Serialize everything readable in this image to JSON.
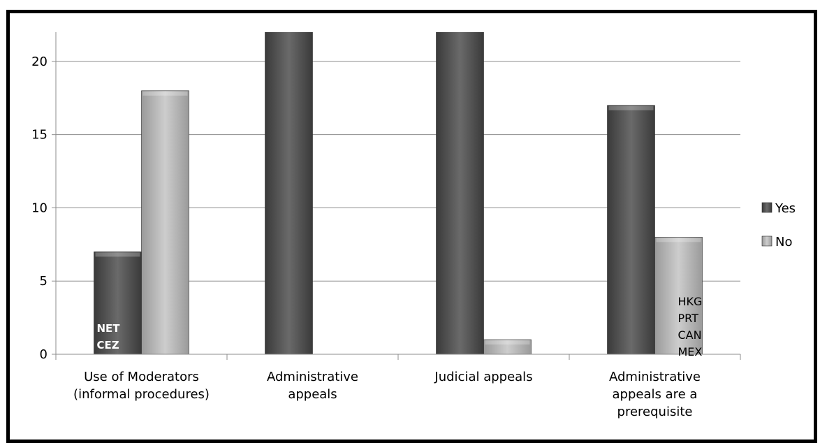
{
  "chart_data": {
    "type": "bar",
    "categories": [
      [
        "Use of Moderators",
        "(informal procedures)"
      ],
      [
        "Administrative",
        "appeals"
      ],
      [
        "Judicial appeals"
      ],
      [
        "Administrative",
        "appeals are a",
        "prerequisite"
      ]
    ],
    "series": [
      {
        "name": "Yes",
        "values": [
          7,
          24,
          24,
          17
        ],
        "color": "#555555"
      },
      {
        "name": "No",
        "values": [
          18,
          0,
          1,
          8
        ],
        "color": "#b5b5b5"
      }
    ],
    "ylim": [
      0,
      22
    ],
    "yticks": [
      0,
      5,
      10,
      15,
      20
    ],
    "grid": true,
    "legend_position": "right",
    "annotations": [
      {
        "category": 0,
        "series": 0,
        "lines": [
          "NET",
          "CEZ"
        ],
        "style": "light"
      },
      {
        "category": 3,
        "series": 1,
        "lines": [
          "HKG",
          "PRT",
          "CAN",
          "MEX"
        ],
        "style": "dark"
      }
    ]
  }
}
